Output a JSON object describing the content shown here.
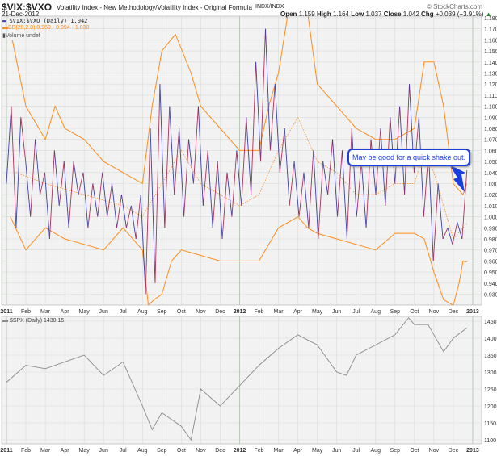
{
  "header": {
    "symbol": "$VIX:$VXO",
    "description": "Volatility Index - New Methodology/Volatility Index - Original Formula",
    "exchange": "INDX/INDX",
    "date": "21-Dec-2012",
    "brand": "© StockCharts.com",
    "open_label": "Open",
    "open": "1.159",
    "high_label": "High",
    "high": "1.164",
    "low_label": "Low",
    "low": "1.037",
    "close_label": "Close",
    "close": "1.042",
    "chg_label": "Chg",
    "chg": "+0.039 (+3.91%)"
  },
  "legend": {
    "main": "$VIX:$VXO (Daily) 1.042",
    "bb": "BB(20,2.0) 0.959 - 0.994 - 1.030",
    "volume": "Volume undef"
  },
  "lower_legend": "$SPX (Daily) 1430.15",
  "annotation": "May be good for a quick shake out.",
  "colors": {
    "ratio": "#3b3fb0",
    "ratio_alt": "#b0305a",
    "bands": "#ff8c1a",
    "spx": "#8a8a8a",
    "grid": "#d8dcd8",
    "bg": "#f2f2f2"
  },
  "chart_data": [
    {
      "type": "line",
      "title": "$VIX:$VXO",
      "x_unit": "months since Jan 2011",
      "ylim": [
        0.92,
        1.185
      ],
      "y_ticks": [
        "1.180",
        "1.170",
        "1.160",
        "1.150",
        "1.140",
        "1.130",
        "1.120",
        "1.110",
        "1.100",
        "1.090",
        "1.080",
        "1.070",
        "1.060",
        "1.050",
        "1.040",
        "1.030",
        "1.020",
        "1.010",
        "1.000",
        "0.990",
        "0.980",
        "0.970",
        "0.960",
        "0.950",
        "0.940",
        "0.930"
      ],
      "x_ticks": [
        "2011",
        "Feb",
        "Mar",
        "Apr",
        "May",
        "Jun",
        "Jul",
        "Aug",
        "Sep",
        "Oct",
        "Nov",
        "Dec",
        "2012",
        "Feb",
        "Mar",
        "Apr",
        "May",
        "Jun",
        "Jul",
        "Aug",
        "Sep",
        "Oct",
        "Nov",
        "Dec",
        "2013"
      ],
      "ratio": [
        1.03,
        1.1,
        0.99,
        1.09,
        1.05,
        1.0,
        1.07,
        1.02,
        1.04,
        0.98,
        1.06,
        1.01,
        1.05,
        0.99,
        1.05,
        1.02,
        1.04,
        0.99,
        1.03,
        1.0,
        1.04,
        1.0,
        1.03,
        0.99,
        1.02,
        0.99,
        1.01,
        0.98,
        1.02,
        0.93,
        1.08,
        0.94,
        1.12,
        0.99,
        1.1,
        1.02,
        1.08,
        1.0,
        1.07,
        1.03,
        1.1,
        1.01,
        1.06,
        0.99,
        1.05,
        0.98,
        1.04,
        1.0,
        1.06,
        1.01,
        1.09,
        1.02,
        1.14,
        1.05,
        1.17,
        1.06,
        1.12,
        1.04,
        1.08,
        1.01,
        1.05,
        1.0,
        1.04,
        0.99,
        1.06,
        0.98,
        1.05,
        1.02,
        1.07,
        1.0,
        1.06,
        0.98,
        1.08,
        1.0,
        1.05,
        0.99,
        1.07,
        1.02,
        1.08,
        1.01,
        1.09,
        1.03,
        1.1,
        1.02,
        1.12,
        1.04,
        1.09,
        1.0,
        1.06,
        0.96,
        1.03,
        0.98,
        0.99,
        0.975,
        0.995,
        0.98,
        1.042
      ],
      "ratio_end_month": 23.7,
      "upper_band": [
        [
          0.3,
          1.16
        ],
        [
          1,
          1.1
        ],
        [
          2,
          1.07
        ],
        [
          2.5,
          1.1
        ],
        [
          3,
          1.08
        ],
        [
          4,
          1.07
        ],
        [
          5,
          1.05
        ],
        [
          6,
          1.04
        ],
        [
          7,
          1.03
        ],
        [
          7.5,
          1.1
        ],
        [
          8,
          1.15
        ],
        [
          8.7,
          1.165
        ],
        [
          9.5,
          1.13
        ],
        [
          10,
          1.1
        ],
        [
          11,
          1.08
        ],
        [
          12,
          1.06
        ],
        [
          13,
          1.06
        ],
        [
          13.5,
          1.1
        ],
        [
          14,
          1.13
        ],
        [
          14.5,
          1.185
        ],
        [
          15.5,
          1.185
        ],
        [
          16,
          1.12
        ],
        [
          17,
          1.1
        ],
        [
          18,
          1.08
        ],
        [
          19,
          1.07
        ],
        [
          20,
          1.07
        ],
        [
          21,
          1.08
        ],
        [
          21.5,
          1.14
        ],
        [
          22,
          1.14
        ],
        [
          22.5,
          1.1
        ],
        [
          23,
          1.03
        ],
        [
          23.5,
          1.02
        ],
        [
          23.7,
          1.03
        ]
      ],
      "lower_band": [
        [
          0.2,
          1.0
        ],
        [
          1,
          0.97
        ],
        [
          2,
          0.99
        ],
        [
          3,
          0.98
        ],
        [
          4,
          0.975
        ],
        [
          5,
          0.97
        ],
        [
          6,
          0.99
        ],
        [
          7,
          0.97
        ],
        [
          7.3,
          0.92
        ],
        [
          7.6,
          0.925
        ],
        [
          8,
          0.93
        ],
        [
          8.5,
          0.96
        ],
        [
          9,
          0.97
        ],
        [
          10,
          0.965
        ],
        [
          11,
          0.96
        ],
        [
          12,
          0.96
        ],
        [
          13,
          0.96
        ],
        [
          14,
          0.99
        ],
        [
          15,
          1.0
        ],
        [
          15.5,
          0.99
        ],
        [
          16,
          0.985
        ],
        [
          17,
          0.98
        ],
        [
          18,
          0.975
        ],
        [
          19,
          0.97
        ],
        [
          20,
          0.985
        ],
        [
          21,
          0.985
        ],
        [
          21.5,
          0.98
        ],
        [
          22,
          0.95
        ],
        [
          22.5,
          0.925
        ],
        [
          23,
          0.92
        ],
        [
          23.3,
          0.94
        ],
        [
          23.5,
          0.96
        ],
        [
          23.7,
          0.959
        ]
      ],
      "middle_band": [
        [
          0.5,
          1.04
        ],
        [
          2,
          1.03
        ],
        [
          4,
          1.02
        ],
        [
          6,
          1.01
        ],
        [
          7,
          1.0
        ],
        [
          8,
          1.03
        ],
        [
          9,
          1.06
        ],
        [
          10,
          1.03
        ],
        [
          11,
          1.02
        ],
        [
          12,
          1.01
        ],
        [
          13,
          1.02
        ],
        [
          14,
          1.06
        ],
        [
          15,
          1.09
        ],
        [
          16,
          1.05
        ],
        [
          17,
          1.04
        ],
        [
          18,
          1.02
        ],
        [
          19,
          1.02
        ],
        [
          20,
          1.03
        ],
        [
          21,
          1.03
        ],
        [
          21.5,
          1.06
        ],
        [
          22,
          1.04
        ],
        [
          23,
          0.98
        ],
        [
          23.7,
          0.994
        ]
      ]
    },
    {
      "type": "line",
      "title": "$SPX",
      "ylim": [
        1075,
        1470
      ],
      "y_ticks": [
        "1450",
        "1400",
        "1350",
        "1300",
        "1250",
        "1200",
        "1150",
        "1100"
      ],
      "spx": [
        [
          0,
          1270
        ],
        [
          1,
          1320
        ],
        [
          2,
          1310
        ],
        [
          3,
          1330
        ],
        [
          4,
          1350
        ],
        [
          5,
          1290
        ],
        [
          6,
          1330
        ],
        [
          7,
          1200
        ],
        [
          7.5,
          1130
        ],
        [
          8,
          1180
        ],
        [
          9,
          1140
        ],
        [
          9.5,
          1100
        ],
        [
          10,
          1250
        ],
        [
          11,
          1200
        ],
        [
          12,
          1260
        ],
        [
          13,
          1320
        ],
        [
          14,
          1370
        ],
        [
          15,
          1410
        ],
        [
          16,
          1380
        ],
        [
          17,
          1300
        ],
        [
          17.5,
          1290
        ],
        [
          18,
          1350
        ],
        [
          19,
          1380
        ],
        [
          20,
          1410
        ],
        [
          20.7,
          1460
        ],
        [
          21,
          1440
        ],
        [
          21.7,
          1440
        ],
        [
          22,
          1410
        ],
        [
          22.5,
          1360
        ],
        [
          23,
          1400
        ],
        [
          23.7,
          1430
        ]
      ]
    }
  ]
}
